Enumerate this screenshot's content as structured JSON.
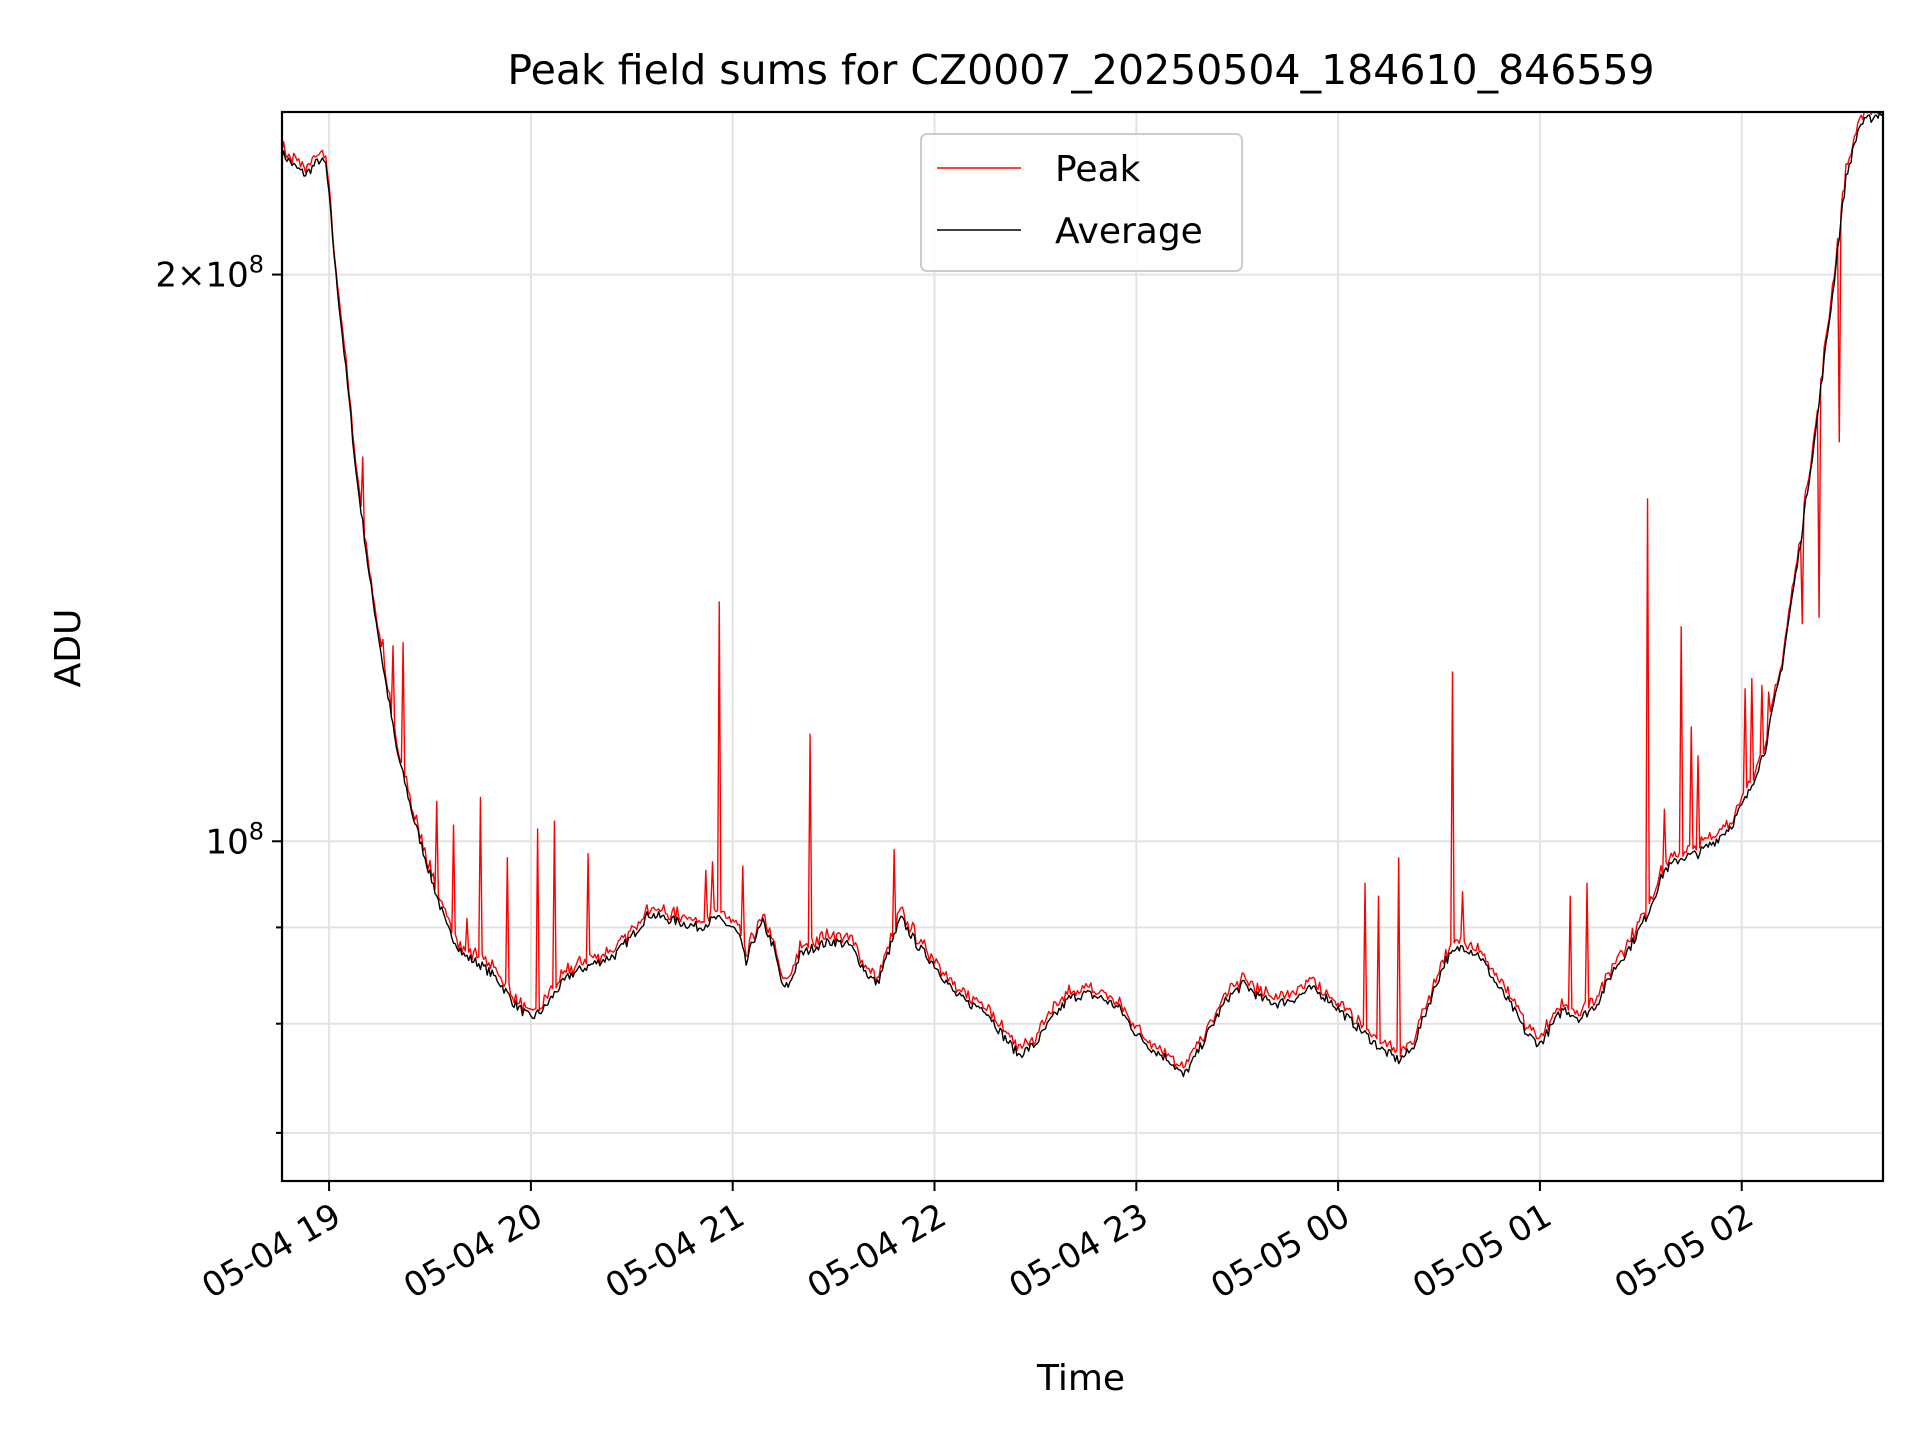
{
  "chart_data": {
    "type": "line",
    "title": "Peak field sums for CZ0007_20250504_184610_846559",
    "xlabel": "Time",
    "ylabel": "ADU",
    "yscale": "log",
    "ylim": [
      66000000,
      244000000
    ],
    "xlim": [
      "2025-05-04 18:46",
      "2025-05-05 02:42"
    ],
    "grid": true,
    "legend_position": "upper center",
    "x_ticks": [
      {
        "value": "2025-05-04 19:00",
        "label": "05-04 19"
      },
      {
        "value": "2025-05-04 20:00",
        "label": "05-04 20"
      },
      {
        "value": "2025-05-04 21:00",
        "label": "05-04 21"
      },
      {
        "value": "2025-05-04 22:00",
        "label": "05-04 22"
      },
      {
        "value": "2025-05-04 23:00",
        "label": "05-04 23"
      },
      {
        "value": "2025-05-05 00:00",
        "label": "05-05 00"
      },
      {
        "value": "2025-05-05 01:00",
        "label": "05-05 01"
      },
      {
        "value": "2025-05-05 02:00",
        "label": "05-05 02"
      }
    ],
    "y_ticks": [
      {
        "value": 200000000,
        "base": "2",
        "label": "10",
        "exp": "8",
        "major": true
      },
      {
        "value": 100000000,
        "base": "",
        "label": "10",
        "exp": "8",
        "major": true
      },
      {
        "value": 90000000,
        "major": false
      },
      {
        "value": 80000000,
        "major": false
      },
      {
        "value": 70000000,
        "major": false
      }
    ],
    "colors": {
      "Peak": "#ff0000",
      "Average": "#000000"
    },
    "series": [
      {
        "name": "Average",
        "points": [
          [
            "2025-05-04 18:46",
            232000000
          ],
          [
            "2025-05-04 18:50",
            228000000
          ],
          [
            "2025-05-04 18:53",
            226000000
          ],
          [
            "2025-05-04 18:57",
            230000000
          ],
          [
            "2025-05-04 18:59",
            229000000
          ],
          [
            "2025-05-04 19:00",
            220000000
          ],
          [
            "2025-05-04 19:02",
            200000000
          ],
          [
            "2025-05-04 19:05",
            178000000
          ],
          [
            "2025-05-04 19:08",
            157000000
          ],
          [
            "2025-05-04 19:12",
            138000000
          ],
          [
            "2025-05-04 19:16",
            124000000
          ],
          [
            "2025-05-04 19:20",
            112000000
          ],
          [
            "2025-05-04 19:25",
            103000000
          ],
          [
            "2025-05-04 19:30",
            96000000
          ],
          [
            "2025-05-04 19:35",
            90000000
          ],
          [
            "2025-05-04 19:40",
            87000000
          ],
          [
            "2025-05-04 19:45",
            86000000
          ],
          [
            "2025-05-04 19:50",
            84500000
          ],
          [
            "2025-05-04 19:55",
            82000000
          ],
          [
            "2025-05-04 20:00",
            80500000
          ],
          [
            "2025-05-04 20:04",
            81500000
          ],
          [
            "2025-05-04 20:08",
            83500000
          ],
          [
            "2025-05-04 20:12",
            85000000
          ],
          [
            "2025-05-04 20:18",
            86000000
          ],
          [
            "2025-05-04 20:25",
            87000000
          ],
          [
            "2025-05-04 20:30",
            89000000
          ],
          [
            "2025-05-04 20:35",
            91500000
          ],
          [
            "2025-05-04 20:40",
            91000000
          ],
          [
            "2025-05-04 20:45",
            90500000
          ],
          [
            "2025-05-04 20:50",
            90000000
          ],
          [
            "2025-05-04 20:55",
            91000000
          ],
          [
            "2025-05-04 21:00",
            90000000
          ],
          [
            "2025-05-04 21:02",
            89000000
          ],
          [
            "2025-05-04 21:04",
            86000000
          ],
          [
            "2025-05-04 21:06",
            88500000
          ],
          [
            "2025-05-04 21:09",
            90500000
          ],
          [
            "2025-05-04 21:12",
            88000000
          ],
          [
            "2025-05-04 21:15",
            83500000
          ],
          [
            "2025-05-04 21:17",
            84000000
          ],
          [
            "2025-05-04 21:20",
            87000000
          ],
          [
            "2025-05-04 21:25",
            88000000
          ],
          [
            "2025-05-04 21:30",
            88500000
          ],
          [
            "2025-05-04 21:35",
            88000000
          ],
          [
            "2025-05-04 21:40",
            85000000
          ],
          [
            "2025-05-04 21:43",
            84000000
          ],
          [
            "2025-05-04 21:46",
            87000000
          ],
          [
            "2025-05-04 21:50",
            91000000
          ],
          [
            "2025-05-04 21:55",
            88000000
          ],
          [
            "2025-05-04 22:00",
            86000000
          ],
          [
            "2025-05-04 22:06",
            83000000
          ],
          [
            "2025-05-04 22:10",
            82000000
          ],
          [
            "2025-05-04 22:15",
            81500000
          ],
          [
            "2025-05-04 22:20",
            79000000
          ],
          [
            "2025-05-04 22:25",
            77000000
          ],
          [
            "2025-05-04 22:30",
            78000000
          ],
          [
            "2025-05-04 22:35",
            80500000
          ],
          [
            "2025-05-04 22:40",
            82500000
          ],
          [
            "2025-05-04 22:45",
            83000000
          ],
          [
            "2025-05-04 22:50",
            82500000
          ],
          [
            "2025-05-04 22:55",
            81500000
          ],
          [
            "2025-05-04 23:00",
            79000000
          ],
          [
            "2025-05-04 23:05",
            77500000
          ],
          [
            "2025-05-04 23:10",
            76500000
          ],
          [
            "2025-05-04 23:14",
            75000000
          ],
          [
            "2025-05-04 23:17",
            76500000
          ],
          [
            "2025-05-04 23:22",
            79500000
          ],
          [
            "2025-05-04 23:27",
            82500000
          ],
          [
            "2025-05-04 23:32",
            84000000
          ],
          [
            "2025-05-04 23:37",
            82500000
          ],
          [
            "2025-05-04 23:42",
            82000000
          ],
          [
            "2025-05-04 23:47",
            82500000
          ],
          [
            "2025-05-04 23:52",
            83500000
          ],
          [
            "2025-05-04 23:57",
            82500000
          ],
          [
            "2025-05-05 00:03",
            80500000
          ],
          [
            "2025-05-05 00:08",
            79000000
          ],
          [
            "2025-05-05 00:13",
            77500000
          ],
          [
            "2025-05-05 00:18",
            76500000
          ],
          [
            "2025-05-05 00:22",
            77500000
          ],
          [
            "2025-05-05 00:27",
            82000000
          ],
          [
            "2025-05-05 00:32",
            86500000
          ],
          [
            "2025-05-05 00:37",
            88000000
          ],
          [
            "2025-05-05 00:42",
            87000000
          ],
          [
            "2025-05-05 00:47",
            84000000
          ],
          [
            "2025-05-05 00:52",
            81500000
          ],
          [
            "2025-05-05 00:56",
            79000000
          ],
          [
            "2025-05-05 01:00",
            78000000
          ],
          [
            "2025-05-05 01:03",
            79500000
          ],
          [
            "2025-05-05 01:07",
            81500000
          ],
          [
            "2025-05-05 01:12",
            80500000
          ],
          [
            "2025-05-05 01:17",
            82000000
          ],
          [
            "2025-05-05 01:22",
            85500000
          ],
          [
            "2025-05-05 01:27",
            88000000
          ],
          [
            "2025-05-05 01:32",
            91500000
          ],
          [
            "2025-05-05 01:37",
            96500000
          ],
          [
            "2025-05-05 01:42",
            98000000
          ],
          [
            "2025-05-05 01:47",
            98500000
          ],
          [
            "2025-05-05 01:52",
            100000000
          ],
          [
            "2025-05-05 01:57",
            102000000
          ],
          [
            "2025-05-05 02:02",
            106000000
          ],
          [
            "2025-05-05 02:07",
            112000000
          ],
          [
            "2025-05-05 02:12",
            124000000
          ],
          [
            "2025-05-05 02:17",
            142000000
          ],
          [
            "2025-05-05 02:22",
            165000000
          ],
          [
            "2025-05-05 02:27",
            195000000
          ],
          [
            "2025-05-05 02:31",
            225000000
          ],
          [
            "2025-05-05 02:35",
            240000000
          ],
          [
            "2025-05-05 02:38",
            242000000
          ],
          [
            "2025-05-05 02:42",
            244000000
          ]
        ]
      },
      {
        "name": "Peak",
        "offset_factor": 1.008,
        "spikes": [
          [
            "2025-05-04 19:10",
            160000000
          ],
          [
            "2025-05-04 19:16",
            128000000
          ],
          [
            "2025-05-04 19:19",
            127000000
          ],
          [
            "2025-05-04 19:22",
            127500000
          ],
          [
            "2025-05-04 19:32",
            105000000
          ],
          [
            "2025-05-04 19:37",
            102000000
          ],
          [
            "2025-05-04 19:41",
            91000000
          ],
          [
            "2025-05-04 19:45",
            105500000
          ],
          [
            "2025-05-04 19:53",
            98000000
          ],
          [
            "2025-05-04 20:02",
            101500000
          ],
          [
            "2025-05-04 20:07",
            102500000
          ],
          [
            "2025-05-04 20:17",
            98500000
          ],
          [
            "2025-05-04 20:52",
            96500000
          ],
          [
            "2025-05-04 20:54",
            97500000
          ],
          [
            "2025-05-04 20:56",
            134000000
          ],
          [
            "2025-05-04 21:03",
            97000000
          ],
          [
            "2025-05-04 21:23",
            114000000
          ],
          [
            "2025-05-04 21:48",
            99000000
          ],
          [
            "2025-05-05 00:08",
            95000000
          ],
          [
            "2025-05-05 00:12",
            93500000
          ],
          [
            "2025-05-05 00:18",
            98000000
          ],
          [
            "2025-05-05 00:34",
            123000000
          ],
          [
            "2025-05-05 00:37",
            94000000
          ],
          [
            "2025-05-05 01:09",
            93500000
          ],
          [
            "2025-05-05 01:14",
            95000000
          ],
          [
            "2025-05-05 01:32",
            152000000
          ],
          [
            "2025-05-05 01:37",
            104000000
          ],
          [
            "2025-05-05 01:42",
            130000000
          ],
          [
            "2025-05-05 01:45",
            115000000
          ],
          [
            "2025-05-05 01:47",
            111000000
          ],
          [
            "2025-05-05 02:01",
            120500000
          ],
          [
            "2025-05-05 02:03",
            122000000
          ],
          [
            "2025-05-05 02:06",
            121000000
          ],
          [
            "2025-05-05 02:08",
            120000000
          ],
          [
            "2025-05-05 02:18",
            130500000
          ],
          [
            "2025-05-05 02:23",
            131500000
          ],
          [
            "2025-05-05 02:29",
            163000000
          ]
        ]
      }
    ]
  }
}
